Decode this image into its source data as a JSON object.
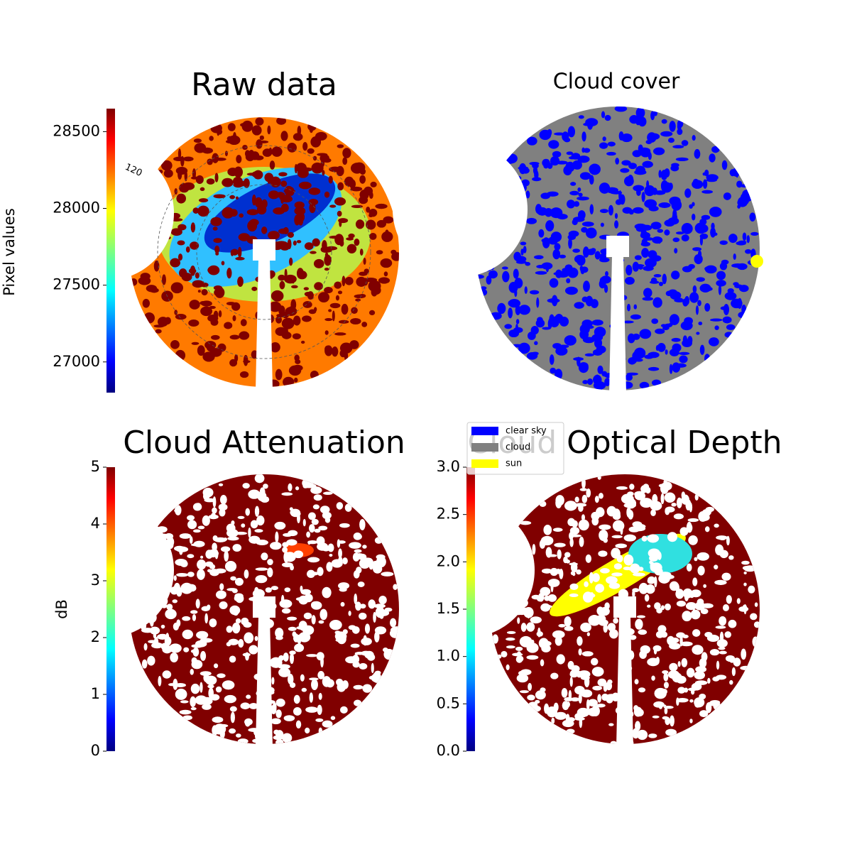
{
  "chart_data": [
    {
      "type": "image",
      "title": "Raw data",
      "polar_labels": [
        "120"
      ],
      "colorbar": {
        "label": "Pixel values",
        "cmap": "jet",
        "lim": [
          26800,
          28650
        ],
        "ticks": [
          27000,
          27500,
          28000,
          28500
        ]
      }
    },
    {
      "type": "image",
      "title": "Cloud cover",
      "legend": [
        {
          "name": "clear sky",
          "color": "#0000ff"
        },
        {
          "name": "cloud",
          "color": "#808080"
        },
        {
          "name": "sun",
          "color": "#ffff00"
        }
      ]
    },
    {
      "type": "image",
      "title": "Cloud Attenuation",
      "colorbar": {
        "label": "dB",
        "cmap": "jet",
        "lim": [
          0,
          5
        ],
        "ticks": [
          0,
          1,
          2,
          3,
          4,
          5
        ]
      }
    },
    {
      "type": "image",
      "title": "Cloud Optical Depth",
      "colorbar": {
        "cmap": "jet",
        "lim": [
          0,
          3
        ],
        "ticks": [
          {
            "value": 0,
            "label": "0.0"
          },
          0.5,
          {
            "value": 1,
            "label": "1.0"
          },
          1.5,
          {
            "value": 2,
            "label": "2.0"
          },
          2.5,
          {
            "value": 3,
            "label": "3.0"
          }
        ]
      }
    }
  ]
}
